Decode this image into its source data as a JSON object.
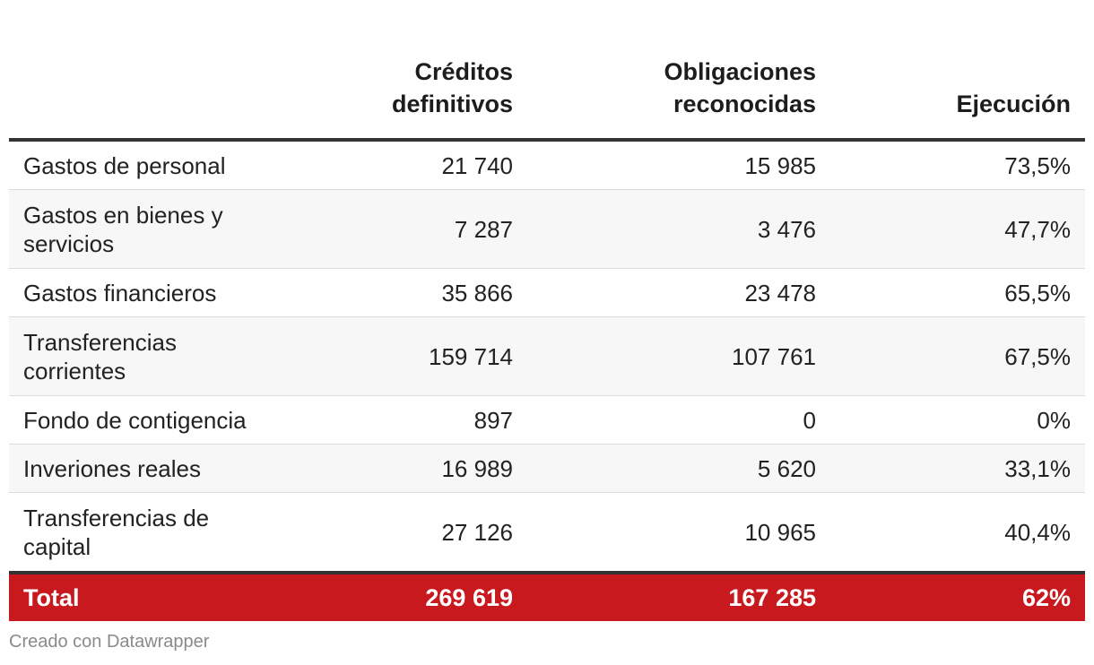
{
  "chart_data": {
    "type": "table",
    "columns": [
      "",
      "Créditos definitivos",
      "Obligaciones reconocidas",
      "Ejecución"
    ],
    "header": {
      "col2_line1": "Créditos",
      "col2_line2": "definitivos",
      "col3_line1": "Obligaciones",
      "col3_line2": "reconocidas",
      "col4": "Ejecución"
    },
    "rows": [
      {
        "label_line1": "Gastos de personal",
        "label_line2": "",
        "creditos": "21 740",
        "obligaciones": "15 985",
        "ejecucion": "73,5%"
      },
      {
        "label_line1": "Gastos en bienes y",
        "label_line2": "servicios",
        "creditos": "7 287",
        "obligaciones": "3 476",
        "ejecucion": "47,7%"
      },
      {
        "label_line1": "Gastos financieros",
        "label_line2": "",
        "creditos": "35 866",
        "obligaciones": "23 478",
        "ejecucion": "65,5%"
      },
      {
        "label_line1": "Transferencias",
        "label_line2": "corrientes",
        "creditos": "159 714",
        "obligaciones": "107 761",
        "ejecucion": "67,5%"
      },
      {
        "label_line1": "Fondo de contigencia",
        "label_line2": "",
        "creditos": "897",
        "obligaciones": "0",
        "ejecucion": "0%"
      },
      {
        "label_line1": "Inveriones reales",
        "label_line2": "",
        "creditos": "16 989",
        "obligaciones": "5 620",
        "ejecucion": "33,1%"
      },
      {
        "label_line1": "Transferencias de",
        "label_line2": "capital",
        "creditos": "27 126",
        "obligaciones": "10 965",
        "ejecucion": "40,4%"
      }
    ],
    "total": {
      "label": "Total",
      "creditos": "269 619",
      "obligaciones": "167 285",
      "ejecucion": "62%"
    }
  },
  "footer": {
    "credit": "Creado con Datawrapper"
  },
  "colors": {
    "total_bg": "#c8191f",
    "rule": "#333333",
    "zebra": "#f7f7f7"
  }
}
